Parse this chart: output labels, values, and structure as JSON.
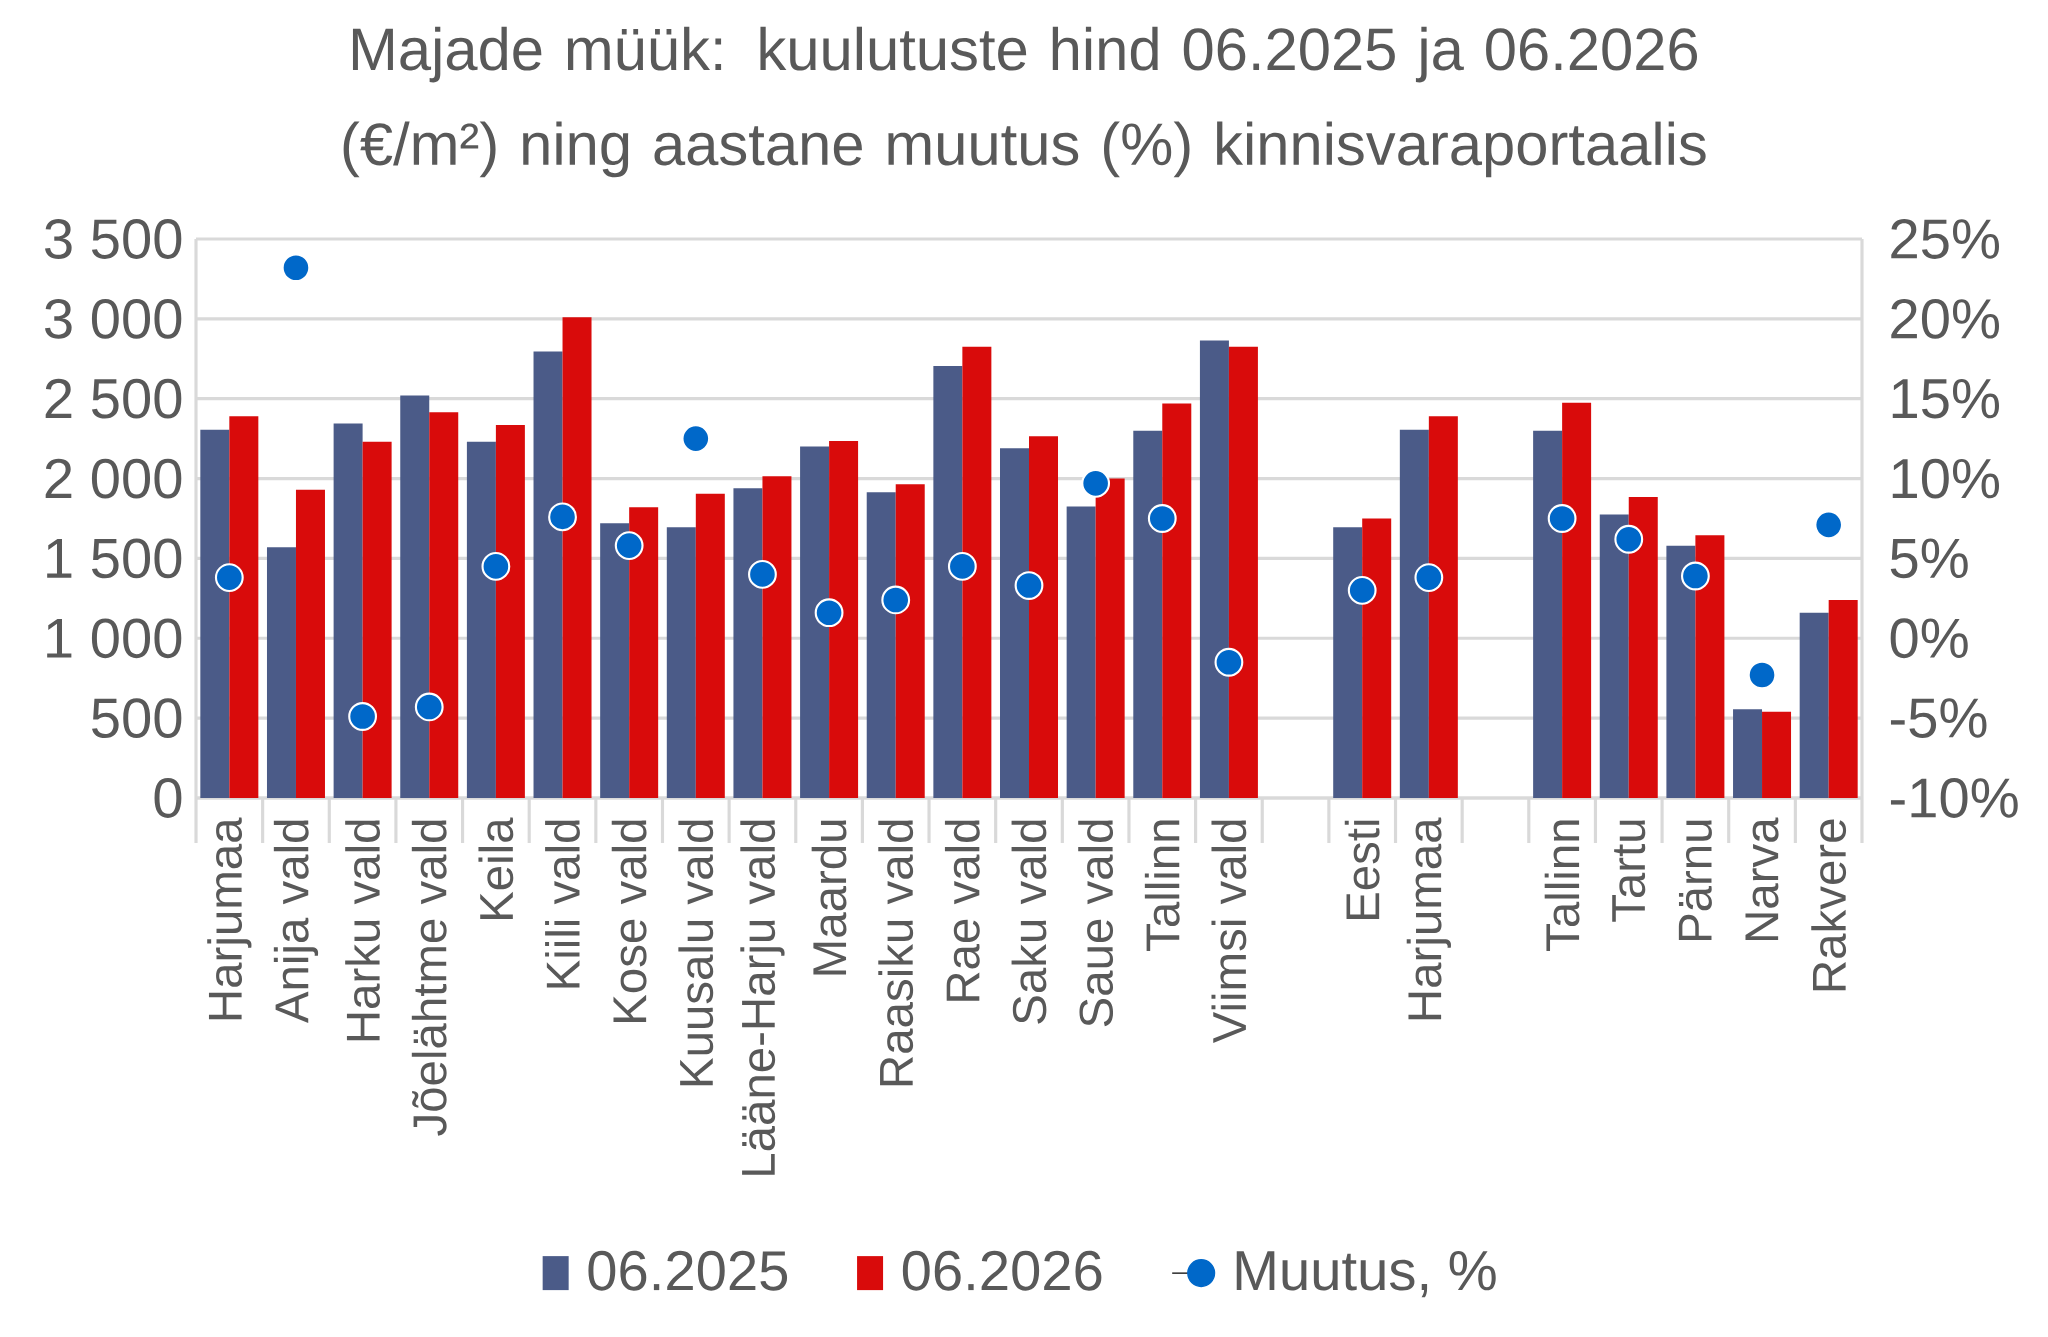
{
  "chart_data": {
    "type": "bar",
    "title": "Majade müük: kuulutuste hind 06.2025 ja 06.2026 (€/m²) ning aastane muutus (%) kinnisvaraportaalis",
    "categories": [
      "Harjumaa",
      "Anija vald",
      "Harku vald",
      "Jõelähtme vald",
      "Keila",
      "Kiili vald",
      "Kose vald",
      "Kuusalu vald",
      "Lääne-Harju vald",
      "Maardu",
      "Raasiku vald",
      "Rae vald",
      "Saku vald",
      "Saue vald",
      "Tallinn",
      "Viimsi vald",
      null,
      "Eesti",
      "Harjumaa",
      null,
      "Tallinn",
      "Tartu",
      "Pärnu",
      "Narva",
      "Rakvere"
    ],
    "series": [
      {
        "name": "06.2025",
        "color": "#4b5b88",
        "values": [
          2305,
          1570,
          2345,
          2520,
          2230,
          2795,
          1720,
          1695,
          1940,
          2200,
          1915,
          2705,
          2190,
          1825,
          2300,
          2865,
          null,
          1695,
          2305,
          null,
          2300,
          1775,
          1580,
          555,
          1160
        ]
      },
      {
        "name": "06.2026",
        "color": "#d90b0b",
        "values": [
          2390,
          1930,
          2230,
          2415,
          2335,
          3010,
          1820,
          1905,
          2015,
          2235,
          1965,
          2825,
          2265,
          2000,
          2470,
          2825,
          null,
          1750,
          2390,
          null,
          2475,
          1885,
          1645,
          540,
          1240
        ]
      },
      {
        "name": "Muutus, %",
        "type": "scatter",
        "axis": "y2",
        "marker": "circle",
        "color": "#0068c9",
        "values": [
          3.8,
          23.2,
          -4.9,
          -4.3,
          4.5,
          7.6,
          5.8,
          12.5,
          4.0,
          1.6,
          2.4,
          4.5,
          3.3,
          9.7,
          7.5,
          -1.5,
          null,
          3.0,
          3.8,
          null,
          7.5,
          6.2,
          3.9,
          -2.3,
          7.1
        ]
      }
    ],
    "ylim": [
      0,
      3500
    ],
    "yticks": [
      0,
      500,
      {
        "value": 1000,
        "label": "1 000"
      },
      {
        "value": 1500,
        "label": "1 500"
      },
      {
        "value": 2000,
        "label": "2 000"
      },
      {
        "value": 2500,
        "label": "2 500"
      },
      {
        "value": 3000,
        "label": "3 000"
      },
      {
        "value": 3500,
        "label": "3 500"
      }
    ],
    "y2lim": [
      -10,
      25
    ],
    "y2ticks": [
      {
        "value": -10,
        "label": "-10%"
      },
      {
        "value": -5,
        "label": "-5%"
      },
      {
        "value": 0,
        "label": "0%"
      },
      {
        "value": 5,
        "label": "5%"
      },
      {
        "value": 10,
        "label": "10%"
      },
      {
        "value": 15,
        "label": "15%"
      },
      {
        "value": 20,
        "label": "20%"
      },
      {
        "value": 25,
        "label": "25%"
      }
    ],
    "grid": "y",
    "legend": "bottom"
  }
}
